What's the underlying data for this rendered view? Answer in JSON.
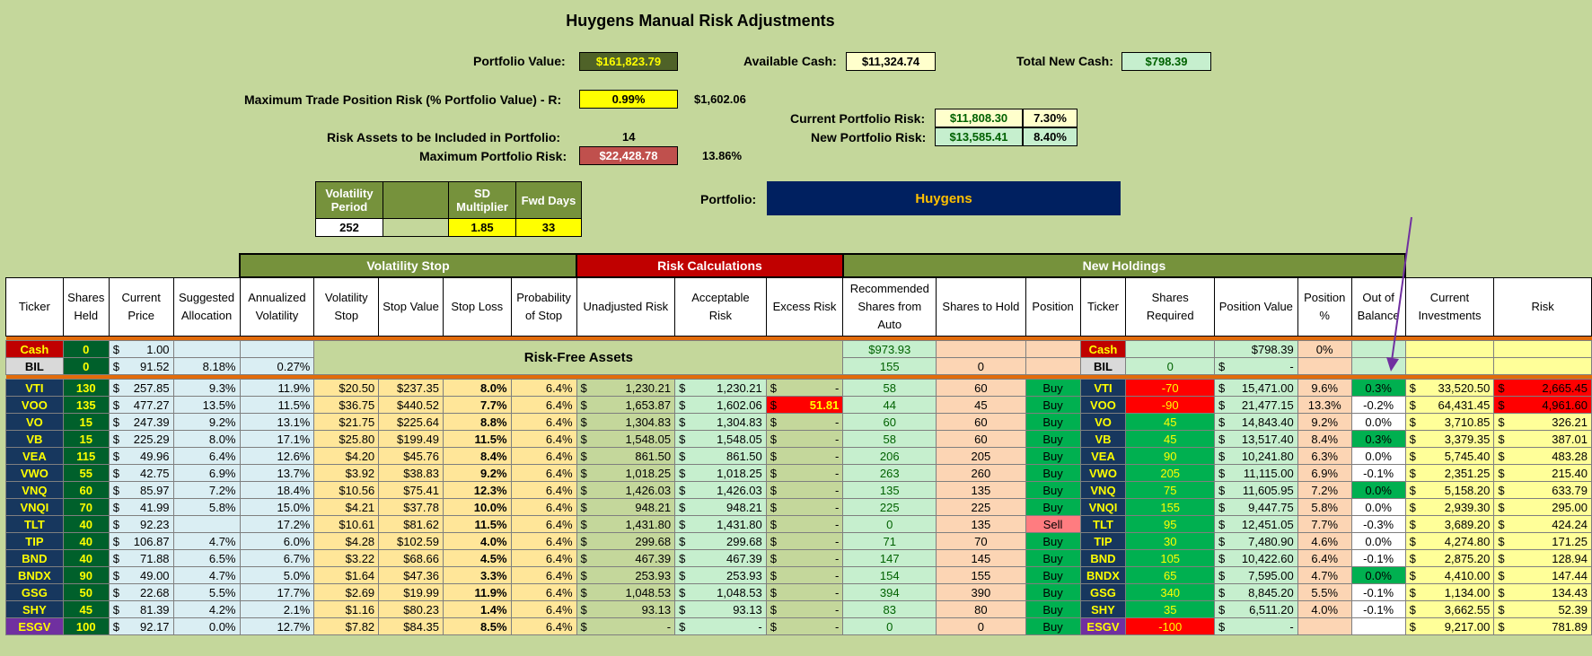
{
  "title": "Huygens Manual Risk Adjustments",
  "portfolio_value_label": "Portfolio Value:",
  "portfolio_value": "$161,823.79",
  "available_cash_label": "Available Cash:",
  "available_cash": "$11,324.74",
  "total_new_cash_label": "Total New Cash:",
  "total_new_cash": "$798.39",
  "max_trade_label": "Maximum Trade Position Risk (% Portfolio Value) - R:",
  "max_trade_pct": "0.99%",
  "max_trade_amt": "$1,602.06",
  "current_risk_label": "Current Portfolio Risk:",
  "current_risk_amt": "$11,808.30",
  "current_risk_pct": "7.30%",
  "new_risk_label": "New Portfolio Risk:",
  "new_risk_amt": "$13,585.41",
  "new_risk_pct": "8.40%",
  "risk_assets_label": "Risk Assets to be Included in Portfolio:",
  "risk_assets": "14",
  "max_portfolio_risk_label": "Maximum Portfolio Risk:",
  "max_portfolio_risk": "$22,428.78",
  "max_portfolio_risk_pct": "13.86%",
  "vol_params": {
    "h1": "Volatility Period",
    "h2": "",
    "h3": "SD Multiplier",
    "h4": "Fwd Days",
    "v1": "252",
    "v2": "",
    "v3": "1.85",
    "v4": "33"
  },
  "portfolio_label": "Portfolio:",
  "portfolio_name": "Huygens",
  "groups": {
    "vol": "Volatility Stop",
    "risk": "Risk Calculations",
    "new": "New Holdings"
  },
  "columns": [
    "Ticker",
    "Shares Held",
    "Current Price",
    "Suggested Allocation",
    "Annualized Volatility",
    "Volatility Stop",
    "Stop Value",
    "Stop Loss",
    "Probability of Stop",
    "Unadjusted Risk",
    "Acceptable Risk",
    "Excess Risk",
    "Recommended Shares from Auto",
    "Shares to Hold",
    "Position",
    "Ticker",
    "Shares Required",
    "Position Value",
    "Position %",
    "Out of Balance",
    "Current Investments",
    "Risk"
  ],
  "risk_free_label": "Risk-Free Assets",
  "cash_row": {
    "ticker": "Cash",
    "shares": "0",
    "price_sym": "$",
    "price": "1.00",
    "rec": "$973.93",
    "ticker2": "Cash",
    "pos_value": "$798.39",
    "pos_pct": "0%"
  },
  "bil_row": {
    "ticker": "BIL",
    "shares": "0",
    "price_sym": "$",
    "price": "91.52",
    "alloc": "8.18%",
    "vol": "0.27%",
    "rec": "155",
    "hold": "0",
    "ticker2": "BIL",
    "req": "0",
    "pv_sym": "$",
    "pv": "-"
  },
  "rows": [
    {
      "t": "VTI",
      "sh": "130",
      "p": "257.85",
      "al": "9.3%",
      "av": "11.9%",
      "vs": "$20.50",
      "sv": "$237.35",
      "sl": "8.0%",
      "pr": "6.4%",
      "ur": "1,230.21",
      "ar": "1,230.21",
      "er": "-",
      "rec": "58",
      "hold": "60",
      "pos": "Buy",
      "req": "-70",
      "pv": "15,471.00",
      "pp": "9.6%",
      "ob": "0.3%",
      "ci": "33,520.50",
      "rk": "2,665.45"
    },
    {
      "t": "VOO",
      "sh": "135",
      "p": "477.27",
      "al": "13.5%",
      "av": "11.5%",
      "vs": "$36.75",
      "sv": "$440.52",
      "sl": "7.7%",
      "pr": "6.4%",
      "ur": "1,653.87",
      "ar": "1,602.06",
      "er": "51.81",
      "rec": "44",
      "hold": "45",
      "pos": "Buy",
      "req": "-90",
      "pv": "21,477.15",
      "pp": "13.3%",
      "ob": "-0.2%",
      "ci": "64,431.45",
      "rk": "4,961.60"
    },
    {
      "t": "VO",
      "sh": "15",
      "p": "247.39",
      "al": "9.2%",
      "av": "13.1%",
      "vs": "$21.75",
      "sv": "$225.64",
      "sl": "8.8%",
      "pr": "6.4%",
      "ur": "1,304.83",
      "ar": "1,304.83",
      "er": "-",
      "rec": "60",
      "hold": "60",
      "pos": "Buy",
      "req": "45",
      "pv": "14,843.40",
      "pp": "9.2%",
      "ob": "0.0%",
      "ci": "3,710.85",
      "rk": "326.21"
    },
    {
      "t": "VB",
      "sh": "15",
      "p": "225.29",
      "al": "8.0%",
      "av": "17.1%",
      "vs": "$25.80",
      "sv": "$199.49",
      "sl": "11.5%",
      "pr": "6.4%",
      "ur": "1,548.05",
      "ar": "1,548.05",
      "er": "-",
      "rec": "58",
      "hold": "60",
      "pos": "Buy",
      "req": "45",
      "pv": "13,517.40",
      "pp": "8.4%",
      "ob": "0.3%",
      "ci": "3,379.35",
      "rk": "387.01"
    },
    {
      "t": "VEA",
      "sh": "115",
      "p": "49.96",
      "al": "6.4%",
      "av": "12.6%",
      "vs": "$4.20",
      "sv": "$45.76",
      "sl": "8.4%",
      "pr": "6.4%",
      "ur": "861.50",
      "ar": "861.50",
      "er": "-",
      "rec": "206",
      "hold": "205",
      "pos": "Buy",
      "req": "90",
      "pv": "10,241.80",
      "pp": "6.3%",
      "ob": "0.0%",
      "ci": "5,745.40",
      "rk": "483.28"
    },
    {
      "t": "VWO",
      "sh": "55",
      "p": "42.75",
      "al": "6.9%",
      "av": "13.7%",
      "vs": "$3.92",
      "sv": "$38.83",
      "sl": "9.2%",
      "pr": "6.4%",
      "ur": "1,018.25",
      "ar": "1,018.25",
      "er": "-",
      "rec": "263",
      "hold": "260",
      "pos": "Buy",
      "req": "205",
      "pv": "11,115.00",
      "pp": "6.9%",
      "ob": "-0.1%",
      "ci": "2,351.25",
      "rk": "215.40"
    },
    {
      "t": "VNQ",
      "sh": "60",
      "p": "85.97",
      "al": "7.2%",
      "av": "18.4%",
      "vs": "$10.56",
      "sv": "$75.41",
      "sl": "12.3%",
      "pr": "6.4%",
      "ur": "1,426.03",
      "ar": "1,426.03",
      "er": "-",
      "rec": "135",
      "hold": "135",
      "pos": "Buy",
      "req": "75",
      "pv": "11,605.95",
      "pp": "7.2%",
      "ob": "0.0%",
      "ci": "5,158.20",
      "rk": "633.79"
    },
    {
      "t": "VNQI",
      "sh": "70",
      "p": "41.99",
      "al": "5.8%",
      "av": "15.0%",
      "vs": "$4.21",
      "sv": "$37.78",
      "sl": "10.0%",
      "pr": "6.4%",
      "ur": "948.21",
      "ar": "948.21",
      "er": "-",
      "rec": "225",
      "hold": "225",
      "pos": "Buy",
      "req": "155",
      "pv": "9,447.75",
      "pp": "5.8%",
      "ob": "0.0%",
      "ci": "2,939.30",
      "rk": "295.00"
    },
    {
      "t": "TLT",
      "sh": "40",
      "p": "92.23",
      "al": "",
      "av": "17.2%",
      "vs": "$10.61",
      "sv": "$81.62",
      "sl": "11.5%",
      "pr": "6.4%",
      "ur": "1,431.80",
      "ar": "1,431.80",
      "er": "-",
      "rec": "0",
      "hold": "135",
      "pos": "Sell",
      "req": "95",
      "pv": "12,451.05",
      "pp": "7.7%",
      "ob": "-0.3%",
      "ci": "3,689.20",
      "rk": "424.24"
    },
    {
      "t": "TIP",
      "sh": "40",
      "p": "106.87",
      "al": "4.7%",
      "av": "6.0%",
      "vs": "$4.28",
      "sv": "$102.59",
      "sl": "4.0%",
      "pr": "6.4%",
      "ur": "299.68",
      "ar": "299.68",
      "er": "-",
      "rec": "71",
      "hold": "70",
      "pos": "Buy",
      "req": "30",
      "pv": "7,480.90",
      "pp": "4.6%",
      "ob": "0.0%",
      "ci": "4,274.80",
      "rk": "171.25"
    },
    {
      "t": "BND",
      "sh": "40",
      "p": "71.88",
      "al": "6.5%",
      "av": "6.7%",
      "vs": "$3.22",
      "sv": "$68.66",
      "sl": "4.5%",
      "pr": "6.4%",
      "ur": "467.39",
      "ar": "467.39",
      "er": "-",
      "rec": "147",
      "hold": "145",
      "pos": "Buy",
      "req": "105",
      "pv": "10,422.60",
      "pp": "6.4%",
      "ob": "-0.1%",
      "ci": "2,875.20",
      "rk": "128.94"
    },
    {
      "t": "BNDX",
      "sh": "90",
      "p": "49.00",
      "al": "4.7%",
      "av": "5.0%",
      "vs": "$1.64",
      "sv": "$47.36",
      "sl": "3.3%",
      "pr": "6.4%",
      "ur": "253.93",
      "ar": "253.93",
      "er": "-",
      "rec": "154",
      "hold": "155",
      "pos": "Buy",
      "req": "65",
      "pv": "7,595.00",
      "pp": "4.7%",
      "ob": "0.0%",
      "ci": "4,410.00",
      "rk": "147.44"
    },
    {
      "t": "GSG",
      "sh": "50",
      "p": "22.68",
      "al": "5.5%",
      "av": "17.7%",
      "vs": "$2.69",
      "sv": "$19.99",
      "sl": "11.9%",
      "pr": "6.4%",
      "ur": "1,048.53",
      "ar": "1,048.53",
      "er": "-",
      "rec": "394",
      "hold": "390",
      "pos": "Buy",
      "req": "340",
      "pv": "8,845.20",
      "pp": "5.5%",
      "ob": "-0.1%",
      "ci": "1,134.00",
      "rk": "134.43"
    },
    {
      "t": "SHY",
      "sh": "45",
      "p": "81.39",
      "al": "4.2%",
      "av": "2.1%",
      "vs": "$1.16",
      "sv": "$80.23",
      "sl": "1.4%",
      "pr": "6.4%",
      "ur": "93.13",
      "ar": "93.13",
      "er": "-",
      "rec": "83",
      "hold": "80",
      "pos": "Buy",
      "req": "35",
      "pv": "6,511.20",
      "pp": "4.0%",
      "ob": "-0.1%",
      "ci": "3,662.55",
      "rk": "52.39"
    },
    {
      "t": "ESGV",
      "sh": "100",
      "p": "92.17",
      "al": "0.0%",
      "av": "12.7%",
      "vs": "$7.82",
      "sv": "$84.35",
      "sl": "8.5%",
      "pr": "6.4%",
      "ur": "-",
      "ar": "-",
      "er": "-",
      "rec": "0",
      "hold": "0",
      "pos": "Buy",
      "req": "-100",
      "pv": "-",
      "pp": "",
      "ob": "",
      "ci": "9,217.00",
      "rk": "781.89"
    }
  ],
  "colors": {
    "bg": "#c4d79b",
    "header_green": "#76923c",
    "risk_red": "#c00000",
    "navy": "#002060"
  }
}
